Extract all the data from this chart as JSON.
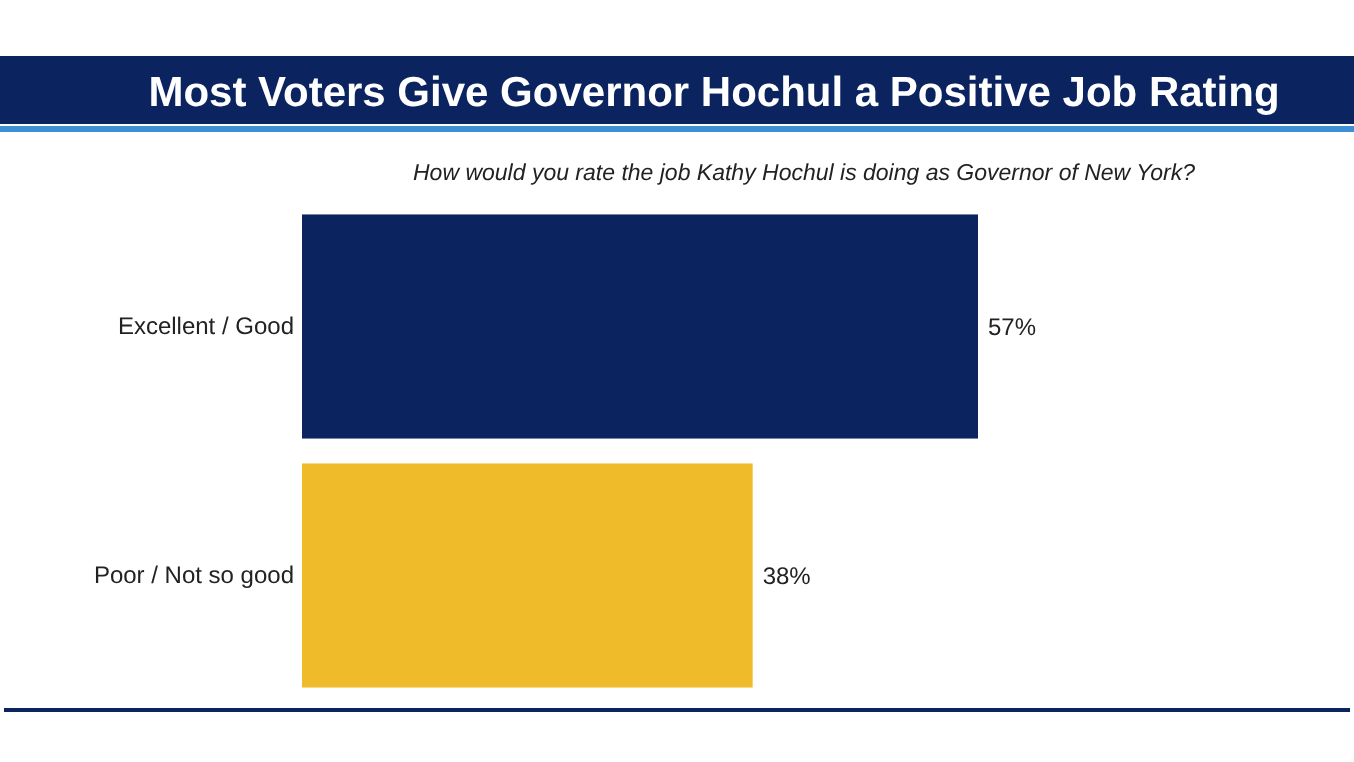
{
  "chart_data": {
    "type": "bar",
    "orientation": "horizontal",
    "title": "Most Voters Give Governor Hochul a Positive Job Rating",
    "subtitle": "How would you rate the job Kathy Hochul is doing as Governor of New York?",
    "categories": [
      "Excellent / Good",
      "Poor / Not so good"
    ],
    "values": [
      57,
      38
    ],
    "colors": [
      "#0b2460",
      "#f0bb2a"
    ],
    "value_labels": [
      "57%",
      "38%"
    ]
  }
}
